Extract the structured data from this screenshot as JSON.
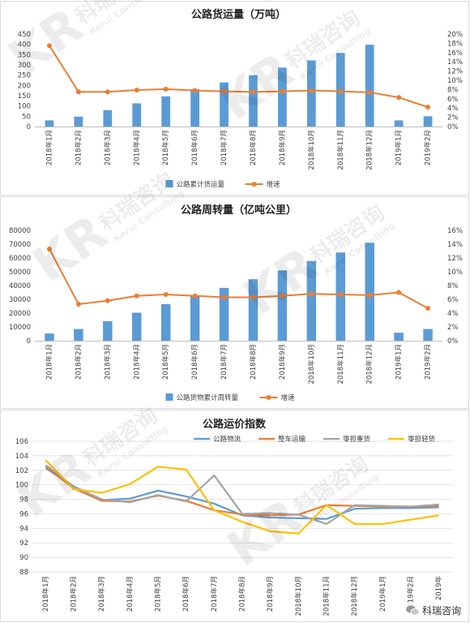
{
  "brand": {
    "watermark_cn": "科瑞咨询",
    "watermark_en": "Kerui Consulting",
    "watermark_logo": "KR",
    "source_label": "科瑞咨询"
  },
  "colors": {
    "blue": "#5b9bd5",
    "orange": "#ed7d31",
    "gray": "#a5a5a5",
    "yellow": "#ffc000",
    "grid": "#d9d9d9",
    "text": "#404040"
  },
  "chart_data": [
    {
      "type": "bar+line",
      "title": "公路货运量（万吨）",
      "categories": [
        "2018年1月",
        "2018年2月",
        "2018年3月",
        "2018年4月",
        "2018年5月",
        "2018年6月",
        "2018年7月",
        "2018年8月",
        "2018年9月",
        "2018年10月",
        "2018年11月",
        "2018年12月",
        "2019年1月",
        "2019年2月"
      ],
      "series": [
        {
          "name": "公路累计货运量",
          "type": "bar",
          "axis": "left",
          "values": [
            30,
            48,
            80,
            113,
            147,
            182,
            215,
            250,
            287,
            322,
            358,
            398,
            30,
            50
          ]
        },
        {
          "name": "增速",
          "type": "line",
          "axis": "right",
          "values": [
            17.5,
            7.5,
            7.5,
            7.9,
            8.1,
            7.8,
            7.6,
            7.5,
            7.6,
            7.8,
            7.6,
            7.4,
            6.3,
            4.2
          ]
        }
      ],
      "left_axis": {
        "ylim": [
          0,
          450
        ],
        "ticks": [
          "0",
          "50",
          "100",
          "150",
          "200",
          "250",
          "300",
          "350",
          "400",
          "450"
        ]
      },
      "right_axis": {
        "ylim": [
          0,
          20
        ],
        "ticks": [
          "0%",
          "2%",
          "4%",
          "6%",
          "8%",
          "10%",
          "12%",
          "14%",
          "16%",
          "18%",
          "20%"
        ]
      },
      "legend": "bottom"
    },
    {
      "type": "bar+line",
      "title": "公路周转量（亿吨公里）",
      "categories": [
        "2018年1月",
        "2018年2月",
        "2018年3月",
        "2018年4月",
        "2018年5月",
        "2018年6月",
        "2018年7月",
        "2018年8月",
        "2018年9月",
        "2018年10月",
        "2018年11月",
        "2018年12月",
        "2019年1月",
        "2019年2月"
      ],
      "series": [
        {
          "name": "公路货物累计周转量",
          "type": "bar",
          "axis": "left",
          "values": [
            5200,
            8500,
            14200,
            20300,
            26500,
            32700,
            38300,
            44600,
            51000,
            57800,
            64000,
            71000,
            5800,
            8500
          ]
        },
        {
          "name": "增速",
          "type": "line",
          "axis": "right",
          "values": [
            13.3,
            5.3,
            5.8,
            6.5,
            6.7,
            6.5,
            6.3,
            6.3,
            6.5,
            6.8,
            6.7,
            6.6,
            7.0,
            4.7
          ]
        }
      ],
      "left_axis": {
        "ylim": [
          0,
          80000
        ],
        "ticks": [
          "0",
          "10000",
          "20000",
          "30000",
          "40000",
          "50000",
          "60000",
          "70000",
          "80000"
        ]
      },
      "right_axis": {
        "ylim": [
          0,
          16
        ],
        "ticks": [
          "0%",
          "2%",
          "4%",
          "6%",
          "8%",
          "10%",
          "12%",
          "14%",
          "16%"
        ]
      },
      "legend": "bottom"
    },
    {
      "type": "line",
      "title": "公路运价指数",
      "categories": [
        "2018年1月",
        "2018年2月",
        "2018年3月",
        "2018年4月",
        "2018年5月",
        "2018年6月",
        "2018年7月",
        "2018年8月",
        "2018年9月",
        "2018年10月",
        "2018年11月",
        "2018年12月",
        "2019年1月",
        "2019年2月",
        "2019年"
      ],
      "series": [
        {
          "name": "公路物流",
          "color": "#5b9bd5",
          "values": [
            102.3,
            99.8,
            97.9,
            98.1,
            99.2,
            98.4,
            97.4,
            95.8,
            95.5,
            95.4,
            95.3,
            96.7,
            96.8,
            96.8,
            96.9
          ]
        },
        {
          "name": "整车运输",
          "color": "#ed7d31",
          "values": [
            102.5,
            99.5,
            97.8,
            97.7,
            98.5,
            97.8,
            96.5,
            95.9,
            95.8,
            95.9,
            97.2,
            97.1,
            97.0,
            97.0,
            97.1
          ]
        },
        {
          "name": "零担重货",
          "color": "#a5a5a5",
          "values": [
            102.7,
            99.7,
            98.0,
            97.6,
            98.6,
            97.7,
            101.3,
            96.0,
            96.1,
            95.9,
            94.6,
            97.2,
            97.1,
            97.0,
            97.3
          ]
        },
        {
          "name": "零担轻货",
          "color": "#ffc000",
          "values": [
            103.4,
            99.4,
            98.9,
            100.1,
            102.5,
            102.1,
            96.5,
            94.9,
            93.6,
            93.3,
            97.2,
            94.6,
            94.6,
            95.2,
            95.8
          ]
        }
      ],
      "ylim": [
        88,
        106
      ],
      "ticks": [
        "88",
        "90",
        "92",
        "94",
        "96",
        "98",
        "100",
        "102",
        "104",
        "106"
      ],
      "legend": "top"
    }
  ]
}
